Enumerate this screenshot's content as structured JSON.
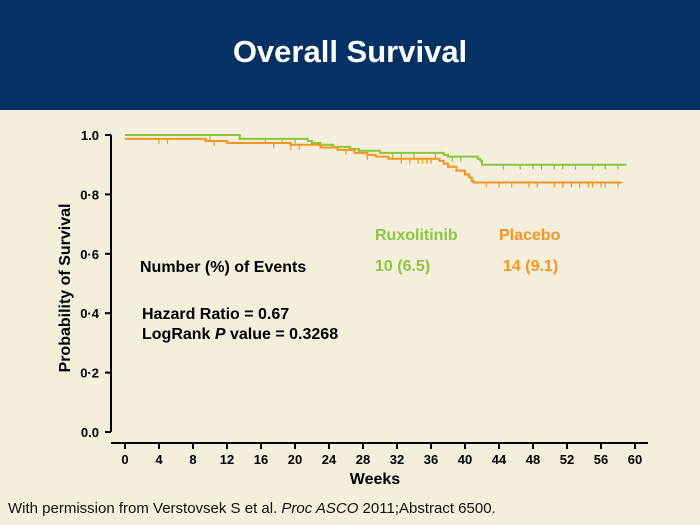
{
  "title": "Overall Survival",
  "footer": {
    "prefix": "With permission from Verstovsek S et al. ",
    "journal": "Proc ASCO",
    "suffix": " 2011;Abstract 6500."
  },
  "chart_data": {
    "type": "line",
    "xlabel": "Weeks",
    "ylabel": "Probability of Survival",
    "xlim": [
      0,
      60
    ],
    "ylim": [
      0,
      1.0
    ],
    "xticks": [
      "0",
      "4",
      "8",
      "12",
      "16",
      "20",
      "24",
      "28",
      "32",
      "36",
      "40",
      "44",
      "48",
      "52",
      "56",
      "60"
    ],
    "yticks": [
      "0.0",
      "0·2",
      "0·4",
      "0·6",
      "0·8",
      "1.0"
    ],
    "grid": false,
    "series": [
      {
        "name": "Ruxolitinib",
        "color": "#8cc63f",
        "step": [
          [
            0,
            1.0
          ],
          [
            13.5,
            0.987
          ],
          [
            21.5,
            0.98
          ],
          [
            22,
            0.973
          ],
          [
            23,
            0.967
          ],
          [
            24.5,
            0.96
          ],
          [
            26.5,
            0.953
          ],
          [
            27.5,
            0.947
          ],
          [
            30,
            0.94
          ],
          [
            37.5,
            0.933
          ],
          [
            38,
            0.927
          ],
          [
            41.5,
            0.92
          ],
          [
            41.8,
            0.913
          ],
          [
            42,
            0.9
          ],
          [
            59,
            0.9
          ]
        ],
        "censor": [
          10,
          16.5,
          18.5,
          20,
          31.5,
          32.5,
          34,
          36.5,
          38.5,
          39.5,
          44.5,
          46.5,
          48,
          49,
          50.5,
          51.5,
          53,
          55,
          56.5,
          58
        ]
      },
      {
        "name": "Placebo",
        "color": "#f7941d",
        "step": [
          [
            0,
            0.987
          ],
          [
            9.5,
            0.98
          ],
          [
            12,
            0.973
          ],
          [
            19.5,
            0.967
          ],
          [
            23,
            0.958
          ],
          [
            25,
            0.95
          ],
          [
            27,
            0.94
          ],
          [
            28.5,
            0.933
          ],
          [
            29.5,
            0.927
          ],
          [
            31,
            0.92
          ],
          [
            37,
            0.913
          ],
          [
            37.5,
            0.903
          ],
          [
            38,
            0.893
          ],
          [
            39,
            0.88
          ],
          [
            40,
            0.867
          ],
          [
            40.5,
            0.857
          ],
          [
            40.8,
            0.845
          ],
          [
            41,
            0.84
          ],
          [
            58.5,
            0.84
          ]
        ],
        "censor": [
          4,
          5,
          10.5,
          17.5,
          19.5,
          20.5,
          26,
          28.5,
          32.5,
          33.5,
          34.5,
          35,
          35.5,
          36,
          42.5,
          44,
          45.5,
          47.5,
          48.5,
          50.5,
          51.5,
          52.5,
          53.5,
          54.5,
          55,
          56,
          56.5,
          58
        ]
      }
    ],
    "annotations": {
      "legend_ruxolitinib": "Ruxolitinib",
      "legend_placebo": "Placebo",
      "events_label": "Number (%) of Events",
      "events_ruxolitinib": "10 (6.5)",
      "events_placebo": "14 (9.1)",
      "hazard_ratio": "Hazard Ratio = 0.67",
      "logrank_prefix": "LogRank ",
      "logrank_p": "P",
      "logrank_suffix": " value = 0.3268"
    }
  }
}
